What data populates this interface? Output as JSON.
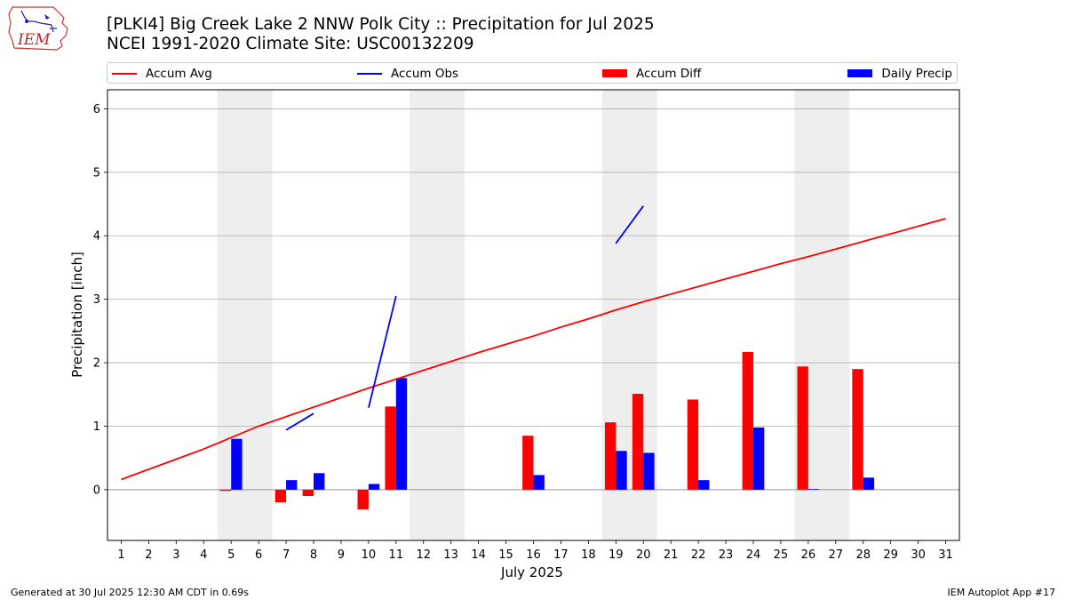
{
  "header": {
    "logo_text": "IEM",
    "title_line1": "[PLKI4] Big Creek Lake 2 NNW Polk City :: Precipitation for Jul 2025",
    "title_line2": "NCEI 1991-2020 Climate Site: USC00132209"
  },
  "legend": {
    "placement": "top",
    "items": [
      {
        "label": "Accum Avg",
        "kind": "line",
        "color": "#ff0000"
      },
      {
        "label": "Accum Obs",
        "kind": "line",
        "color": "#0000ff"
      },
      {
        "label": "Accum Diff",
        "kind": "bar",
        "color": "#ff0000"
      },
      {
        "label": "Daily Precip",
        "kind": "bar",
        "color": "#0000ff"
      }
    ]
  },
  "footer": {
    "generated": "Generated at 30 Jul 2025 12:30 AM CDT in 0.69s",
    "app": "IEM Autoplot App #17"
  },
  "chart_data": {
    "type": "bar",
    "title": "[PLKI4] Big Creek Lake 2 NNW Polk City :: Precipitation for Jul 2025",
    "subtitle": "NCEI 1991-2020 Climate Site: USC00132209",
    "xlabel": "July 2025",
    "ylabel": "Precipitation [inch]",
    "xlim": [
      0.5,
      31.5
    ],
    "ylim": [
      -0.8,
      6.3
    ],
    "yticks": [
      0,
      1,
      2,
      3,
      4,
      5,
      6
    ],
    "xticks": [
      1,
      2,
      3,
      4,
      5,
      6,
      7,
      8,
      9,
      10,
      11,
      12,
      13,
      14,
      15,
      16,
      17,
      18,
      19,
      20,
      21,
      22,
      23,
      24,
      25,
      26,
      27,
      28,
      29,
      30,
      31
    ],
    "grid": "y",
    "weekend_shading": [
      [
        4.5,
        6.5
      ],
      [
        11.5,
        13.5
      ],
      [
        18.5,
        20.5
      ],
      [
        25.5,
        27.5
      ]
    ],
    "shade_color": "#eeeeee",
    "accum_avg": {
      "name": "Accum Avg",
      "color": "#ff0000",
      "x": [
        1,
        2,
        3,
        4,
        5,
        6,
        7,
        8,
        9,
        10,
        11,
        12,
        13,
        14,
        15,
        16,
        17,
        18,
        19,
        20,
        21,
        22,
        23,
        24,
        25,
        26,
        27,
        28,
        29,
        30,
        31
      ],
      "values": [
        0.16,
        0.32,
        0.48,
        0.64,
        0.82,
        1.0,
        1.15,
        1.3,
        1.45,
        1.6,
        1.74,
        1.88,
        2.02,
        2.16,
        2.29,
        2.42,
        2.56,
        2.69,
        2.83,
        2.96,
        3.08,
        3.2,
        3.32,
        3.44,
        3.56,
        3.67,
        3.79,
        3.91,
        4.03,
        4.15,
        4.27
      ]
    },
    "accum_obs": {
      "name": "Accum Obs",
      "color": "#0000ff",
      "segments": [
        [
          [
            7,
            0.94
          ],
          [
            8,
            1.2
          ]
        ],
        [
          [
            10,
            1.29
          ],
          [
            11,
            3.05
          ]
        ],
        [
          [
            19,
            3.88
          ],
          [
            20,
            4.47
          ]
        ]
      ]
    },
    "bar_series": [
      {
        "name": "Accum Diff",
        "color": "#ff0000",
        "offset": -0.2,
        "x": [
          5,
          7,
          8,
          10,
          11,
          16,
          19,
          20,
          22,
          24,
          26,
          28
        ],
        "values": [
          -0.02,
          -0.2,
          -0.1,
          -0.31,
          1.31,
          0.85,
          1.06,
          1.51,
          1.42,
          2.17,
          1.94,
          1.9
        ]
      },
      {
        "name": "Daily Precip",
        "color": "#0000ff",
        "offset": 0.2,
        "x": [
          5,
          7,
          8,
          10,
          11,
          16,
          19,
          20,
          22,
          24,
          26,
          28
        ],
        "values": [
          0.8,
          0.15,
          0.26,
          0.09,
          1.76,
          0.23,
          0.61,
          0.58,
          0.15,
          0.98,
          0.01,
          0.19
        ]
      }
    ]
  }
}
